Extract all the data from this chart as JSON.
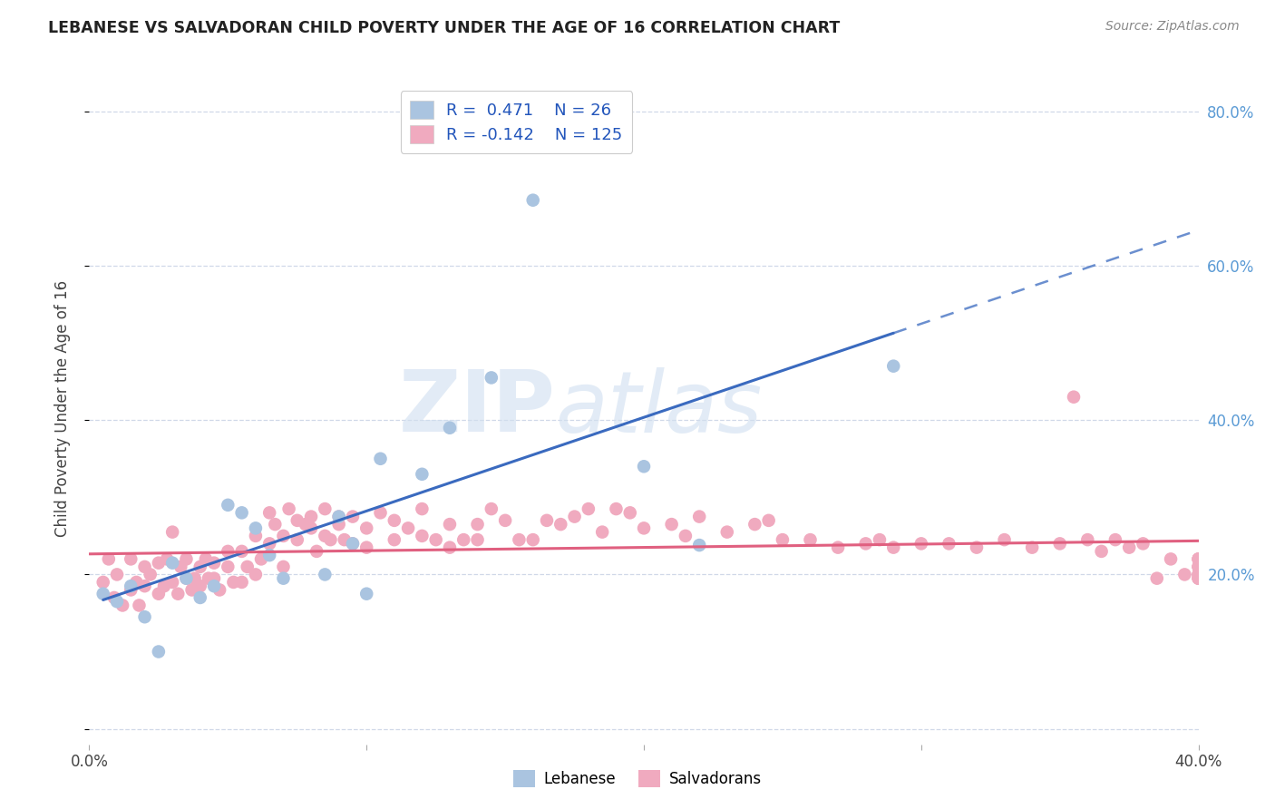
{
  "title": "LEBANESE VS SALVADORAN CHILD POVERTY UNDER THE AGE OF 16 CORRELATION CHART",
  "source": "Source: ZipAtlas.com",
  "ylabel": "Child Poverty Under the Age of 16",
  "xlim": [
    0.0,
    0.4
  ],
  "ylim": [
    -0.02,
    0.85
  ],
  "yticks": [
    0.0,
    0.2,
    0.4,
    0.6,
    0.8
  ],
  "ytick_labels_right": [
    "",
    "20.0%",
    "40.0%",
    "60.0%",
    "80.0%"
  ],
  "xticks": [
    0.0,
    0.1,
    0.2,
    0.3,
    0.4
  ],
  "xtick_labels": [
    "0.0%",
    "",
    "",
    "",
    "40.0%"
  ],
  "legend_entries": [
    {
      "label": "Lebanese",
      "color": "#aac4e0",
      "R": "0.471",
      "N": "26"
    },
    {
      "label": "Salvadorans",
      "color": "#f0aabf",
      "R": "-0.142",
      "N": "125"
    }
  ],
  "blue_scatter_color": "#aac4e0",
  "pink_scatter_color": "#f0aabf",
  "blue_line_color": "#3a6abf",
  "pink_line_color": "#e06080",
  "grid_color": "#d0d8e8",
  "tick_label_color": "#5b9bd5",
  "ylabel_color": "#444444",
  "title_color": "#222222",
  "source_color": "#888888",
  "watermark_color": "#d0dff0",
  "lebanese_x": [
    0.005,
    0.01,
    0.015,
    0.02,
    0.025,
    0.03,
    0.035,
    0.04,
    0.045,
    0.05,
    0.055,
    0.06,
    0.065,
    0.07,
    0.085,
    0.09,
    0.095,
    0.1,
    0.105,
    0.12,
    0.13,
    0.145,
    0.16,
    0.2,
    0.22,
    0.29
  ],
  "lebanese_y": [
    0.175,
    0.165,
    0.185,
    0.145,
    0.1,
    0.215,
    0.195,
    0.17,
    0.185,
    0.29,
    0.28,
    0.26,
    0.225,
    0.195,
    0.2,
    0.275,
    0.24,
    0.175,
    0.35,
    0.33,
    0.39,
    0.455,
    0.685,
    0.34,
    0.238,
    0.47
  ],
  "salvadoran_x": [
    0.005,
    0.007,
    0.009,
    0.01,
    0.012,
    0.015,
    0.015,
    0.017,
    0.018,
    0.02,
    0.02,
    0.022,
    0.025,
    0.025,
    0.027,
    0.028,
    0.03,
    0.03,
    0.032,
    0.033,
    0.035,
    0.035,
    0.037,
    0.038,
    0.04,
    0.04,
    0.042,
    0.043,
    0.045,
    0.045,
    0.047,
    0.05,
    0.05,
    0.052,
    0.055,
    0.055,
    0.057,
    0.06,
    0.06,
    0.062,
    0.065,
    0.065,
    0.067,
    0.07,
    0.07,
    0.072,
    0.075,
    0.075,
    0.078,
    0.08,
    0.08,
    0.082,
    0.085,
    0.085,
    0.087,
    0.09,
    0.09,
    0.092,
    0.095,
    0.095,
    0.1,
    0.1,
    0.105,
    0.11,
    0.11,
    0.115,
    0.12,
    0.12,
    0.125,
    0.13,
    0.13,
    0.135,
    0.14,
    0.14,
    0.145,
    0.15,
    0.155,
    0.16,
    0.165,
    0.17,
    0.175,
    0.18,
    0.185,
    0.19,
    0.195,
    0.2,
    0.21,
    0.215,
    0.22,
    0.23,
    0.24,
    0.245,
    0.25,
    0.26,
    0.27,
    0.28,
    0.285,
    0.29,
    0.3,
    0.31,
    0.32,
    0.33,
    0.34,
    0.35,
    0.355,
    0.36,
    0.365,
    0.37,
    0.375,
    0.38,
    0.385,
    0.39,
    0.395,
    0.4,
    0.4,
    0.4,
    0.4,
    0.4,
    0.4,
    0.4,
    0.4,
    0.4,
    0.4,
    0.4,
    0.4
  ],
  "salvadoran_y": [
    0.19,
    0.22,
    0.17,
    0.2,
    0.16,
    0.18,
    0.22,
    0.19,
    0.16,
    0.21,
    0.185,
    0.2,
    0.175,
    0.215,
    0.185,
    0.22,
    0.19,
    0.255,
    0.175,
    0.21,
    0.195,
    0.22,
    0.18,
    0.195,
    0.21,
    0.185,
    0.22,
    0.195,
    0.195,
    0.215,
    0.18,
    0.21,
    0.23,
    0.19,
    0.19,
    0.23,
    0.21,
    0.25,
    0.2,
    0.22,
    0.28,
    0.24,
    0.265,
    0.25,
    0.21,
    0.285,
    0.245,
    0.27,
    0.265,
    0.26,
    0.275,
    0.23,
    0.285,
    0.25,
    0.245,
    0.265,
    0.275,
    0.245,
    0.24,
    0.275,
    0.26,
    0.235,
    0.28,
    0.27,
    0.245,
    0.26,
    0.25,
    0.285,
    0.245,
    0.235,
    0.265,
    0.245,
    0.265,
    0.245,
    0.285,
    0.27,
    0.245,
    0.245,
    0.27,
    0.265,
    0.275,
    0.285,
    0.255,
    0.285,
    0.28,
    0.26,
    0.265,
    0.25,
    0.275,
    0.255,
    0.265,
    0.27,
    0.245,
    0.245,
    0.235,
    0.24,
    0.245,
    0.235,
    0.24,
    0.24,
    0.235,
    0.245,
    0.235,
    0.24,
    0.43,
    0.245,
    0.23,
    0.245,
    0.235,
    0.24,
    0.195,
    0.22,
    0.2,
    0.195,
    0.21,
    0.2,
    0.22,
    0.195,
    0.21,
    0.2,
    0.22,
    0.195,
    0.21,
    0.2,
    0.22
  ]
}
